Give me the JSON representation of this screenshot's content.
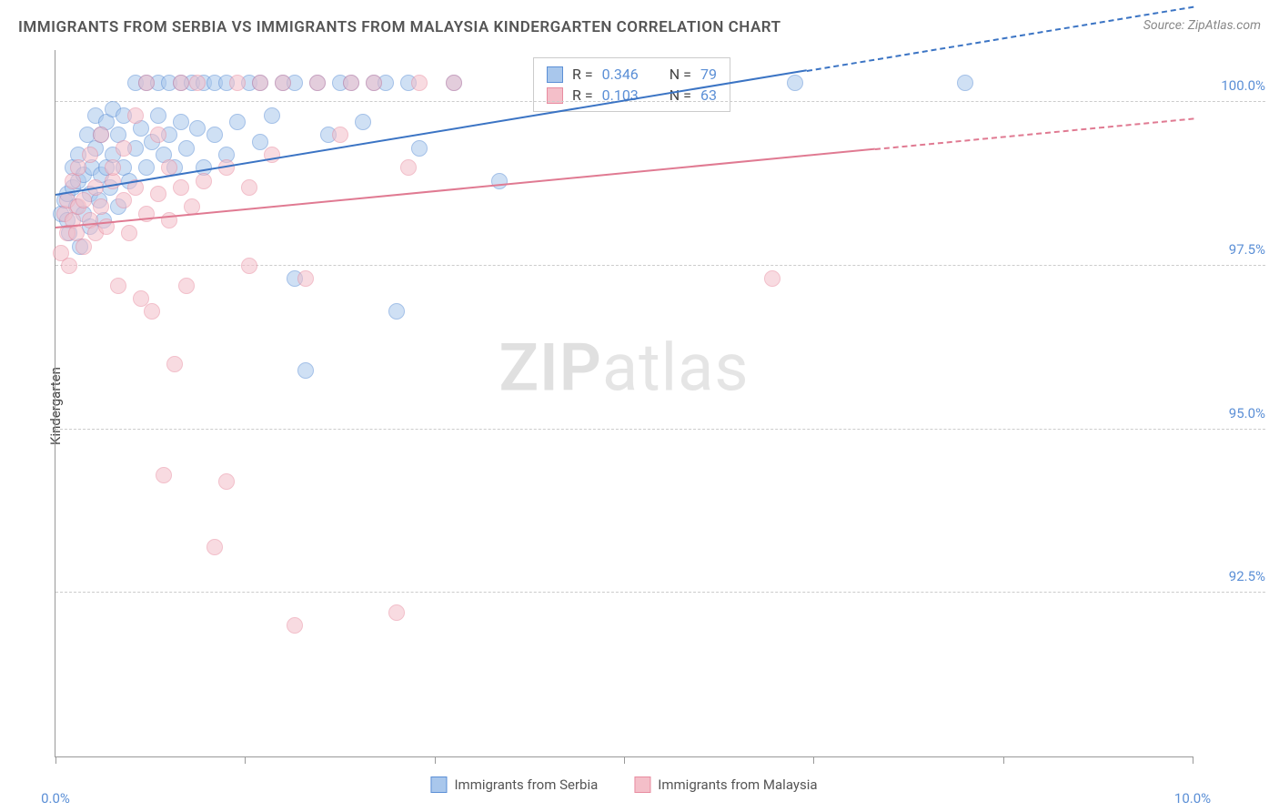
{
  "title": "IMMIGRANTS FROM SERBIA VS IMMIGRANTS FROM MALAYSIA KINDERGARTEN CORRELATION CHART",
  "source": "Source: ZipAtlas.com",
  "ylabel": "Kindergarten",
  "watermark_zip": "ZIP",
  "watermark_atlas": "atlas",
  "chart": {
    "type": "scatter",
    "background_color": "#ffffff",
    "grid_color": "#cccccc",
    "axis_color": "#999999",
    "label_color": "#5b8fd6",
    "xlim": [
      0.0,
      10.0
    ],
    "ylim": [
      90.0,
      100.8
    ],
    "x_ticks": [
      0.0,
      1.667,
      3.333,
      5.0,
      6.667,
      8.333,
      10.0
    ],
    "x_tick_labels_shown": {
      "0": "0.0%",
      "6": "10.0%"
    },
    "y_gridlines": [
      92.5,
      95.0,
      97.5,
      100.0
    ],
    "y_tick_labels": [
      "92.5%",
      "95.0%",
      "97.5%",
      "100.0%"
    ],
    "point_radius": 9,
    "point_opacity": 0.55,
    "series": [
      {
        "name": "Immigrants from Serbia",
        "fill": "#a9c7ec",
        "stroke": "#5b8fd6",
        "trend_color": "#3b74c4",
        "R": "0.346",
        "N": "79",
        "trend": {
          "x1": 0.0,
          "y1": 98.6,
          "x2": 6.6,
          "y2": 100.5,
          "dash_to_x": 10.0
        },
        "points": [
          [
            0.05,
            98.3
          ],
          [
            0.08,
            98.5
          ],
          [
            0.1,
            98.2
          ],
          [
            0.1,
            98.6
          ],
          [
            0.12,
            98.0
          ],
          [
            0.15,
            98.7
          ],
          [
            0.15,
            99.0
          ],
          [
            0.18,
            98.4
          ],
          [
            0.2,
            98.8
          ],
          [
            0.2,
            99.2
          ],
          [
            0.22,
            97.8
          ],
          [
            0.25,
            98.3
          ],
          [
            0.25,
            98.9
          ],
          [
            0.28,
            99.5
          ],
          [
            0.3,
            98.1
          ],
          [
            0.3,
            98.6
          ],
          [
            0.32,
            99.0
          ],
          [
            0.35,
            99.3
          ],
          [
            0.35,
            99.8
          ],
          [
            0.38,
            98.5
          ],
          [
            0.4,
            98.9
          ],
          [
            0.4,
            99.5
          ],
          [
            0.42,
            98.2
          ],
          [
            0.45,
            99.0
          ],
          [
            0.45,
            99.7
          ],
          [
            0.48,
            98.7
          ],
          [
            0.5,
            99.2
          ],
          [
            0.5,
            99.9
          ],
          [
            0.55,
            98.4
          ],
          [
            0.55,
            99.5
          ],
          [
            0.6,
            99.0
          ],
          [
            0.6,
            99.8
          ],
          [
            0.65,
            98.8
          ],
          [
            0.7,
            99.3
          ],
          [
            0.7,
            100.3
          ],
          [
            0.75,
            99.6
          ],
          [
            0.8,
            99.0
          ],
          [
            0.8,
            100.3
          ],
          [
            0.85,
            99.4
          ],
          [
            0.9,
            99.8
          ],
          [
            0.9,
            100.3
          ],
          [
            0.95,
            99.2
          ],
          [
            1.0,
            99.5
          ],
          [
            1.0,
            100.3
          ],
          [
            1.05,
            99.0
          ],
          [
            1.1,
            99.7
          ],
          [
            1.1,
            100.3
          ],
          [
            1.15,
            99.3
          ],
          [
            1.2,
            100.3
          ],
          [
            1.25,
            99.6
          ],
          [
            1.3,
            99.0
          ],
          [
            1.3,
            100.3
          ],
          [
            1.4,
            99.5
          ],
          [
            1.4,
            100.3
          ],
          [
            1.5,
            99.2
          ],
          [
            1.5,
            100.3
          ],
          [
            1.6,
            99.7
          ],
          [
            1.7,
            100.3
          ],
          [
            1.8,
            99.4
          ],
          [
            1.8,
            100.3
          ],
          [
            1.9,
            99.8
          ],
          [
            2.0,
            100.3
          ],
          [
            2.1,
            97.3
          ],
          [
            2.1,
            100.3
          ],
          [
            2.2,
            95.9
          ],
          [
            2.3,
            100.3
          ],
          [
            2.4,
            99.5
          ],
          [
            2.5,
            100.3
          ],
          [
            2.6,
            100.3
          ],
          [
            2.7,
            99.7
          ],
          [
            2.8,
            100.3
          ],
          [
            2.9,
            100.3
          ],
          [
            3.0,
            96.8
          ],
          [
            3.1,
            100.3
          ],
          [
            3.2,
            99.3
          ],
          [
            3.5,
            100.3
          ],
          [
            3.9,
            98.8
          ],
          [
            6.5,
            100.3
          ],
          [
            8.0,
            100.3
          ]
        ]
      },
      {
        "name": "Immigrants from Malaysia",
        "fill": "#f4bfc9",
        "stroke": "#e88ca0",
        "trend_color": "#e07a92",
        "R": "0.103",
        "N": "63",
        "trend": {
          "x1": 0.0,
          "y1": 98.1,
          "x2": 7.2,
          "y2": 99.3,
          "dash_to_x": 10.0
        },
        "points": [
          [
            0.05,
            97.7
          ],
          [
            0.08,
            98.3
          ],
          [
            0.1,
            98.0
          ],
          [
            0.1,
            98.5
          ],
          [
            0.12,
            97.5
          ],
          [
            0.15,
            98.2
          ],
          [
            0.15,
            98.8
          ],
          [
            0.18,
            98.0
          ],
          [
            0.2,
            98.4
          ],
          [
            0.2,
            99.0
          ],
          [
            0.25,
            97.8
          ],
          [
            0.25,
            98.5
          ],
          [
            0.3,
            98.2
          ],
          [
            0.3,
            99.2
          ],
          [
            0.35,
            98.0
          ],
          [
            0.35,
            98.7
          ],
          [
            0.4,
            98.4
          ],
          [
            0.4,
            99.5
          ],
          [
            0.45,
            98.1
          ],
          [
            0.5,
            98.8
          ],
          [
            0.5,
            99.0
          ],
          [
            0.55,
            97.2
          ],
          [
            0.6,
            98.5
          ],
          [
            0.6,
            99.3
          ],
          [
            0.65,
            98.0
          ],
          [
            0.7,
            98.7
          ],
          [
            0.7,
            99.8
          ],
          [
            0.75,
            97.0
          ],
          [
            0.8,
            98.3
          ],
          [
            0.8,
            100.3
          ],
          [
            0.85,
            96.8
          ],
          [
            0.9,
            98.6
          ],
          [
            0.9,
            99.5
          ],
          [
            0.95,
            94.3
          ],
          [
            1.0,
            98.2
          ],
          [
            1.0,
            99.0
          ],
          [
            1.05,
            96.0
          ],
          [
            1.1,
            98.7
          ],
          [
            1.1,
            100.3
          ],
          [
            1.15,
            97.2
          ],
          [
            1.2,
            98.4
          ],
          [
            1.25,
            100.3
          ],
          [
            1.3,
            98.8
          ],
          [
            1.4,
            93.2
          ],
          [
            1.5,
            94.2
          ],
          [
            1.5,
            99.0
          ],
          [
            1.6,
            100.3
          ],
          [
            1.7,
            97.5
          ],
          [
            1.7,
            98.7
          ],
          [
            1.8,
            100.3
          ],
          [
            1.9,
            99.2
          ],
          [
            2.0,
            100.3
          ],
          [
            2.1,
            92.0
          ],
          [
            2.2,
            97.3
          ],
          [
            2.3,
            100.3
          ],
          [
            2.5,
            99.5
          ],
          [
            2.6,
            100.3
          ],
          [
            2.8,
            100.3
          ],
          [
            3.0,
            92.2
          ],
          [
            3.1,
            99.0
          ],
          [
            3.2,
            100.3
          ],
          [
            3.5,
            100.3
          ],
          [
            6.3,
            97.3
          ]
        ]
      }
    ],
    "stats_box": {
      "rows": [
        {
          "swatch_fill": "#a9c7ec",
          "swatch_stroke": "#5b8fd6",
          "r_label": "R =",
          "r_val": "0.346",
          "n_label": "N =",
          "n_val": "79"
        },
        {
          "swatch_fill": "#f4bfc9",
          "swatch_stroke": "#e88ca0",
          "r_label": "R =",
          "r_val": "0.103",
          "n_label": "N =",
          "n_val": "63"
        }
      ]
    },
    "bottom_legend": [
      {
        "swatch_fill": "#a9c7ec",
        "swatch_stroke": "#5b8fd6",
        "label": "Immigrants from Serbia"
      },
      {
        "swatch_fill": "#f4bfc9",
        "swatch_stroke": "#e88ca0",
        "label": "Immigrants from Malaysia"
      }
    ]
  }
}
